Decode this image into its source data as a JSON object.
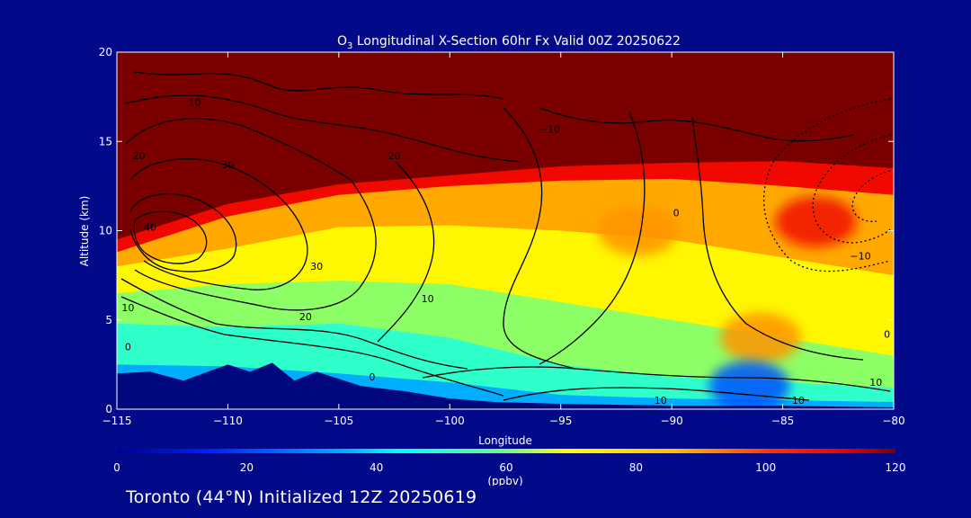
{
  "chart_data": {
    "type": "heatmap",
    "title_prefix": "O",
    "title_subscript": "3",
    "title_rest": " Longitudinal X-Section 60hr  Fx Valid 00Z 20250622",
    "xlabel": "Longitude",
    "ylabel": "Altitude (km)",
    "xlim": [
      -115,
      -80
    ],
    "ylim": [
      0,
      20
    ],
    "x_ticks": [
      -115,
      -110,
      -105,
      -100,
      -95,
      -90,
      -85,
      -80
    ],
    "x_tick_labels": [
      "−115",
      "−110",
      "−105",
      "−100",
      "−95",
      "−90",
      "−85",
      "−80"
    ],
    "y_ticks": [
      0,
      5,
      10,
      15,
      20
    ],
    "y_tick_labels": [
      "0",
      "5",
      "10",
      "15",
      "20"
    ],
    "colorbar": {
      "label": "(ppbv)",
      "ticks": [
        0,
        20,
        40,
        60,
        80,
        100,
        120
      ],
      "tick_labels": [
        "0",
        "20",
        "40",
        "60",
        "80",
        "100",
        "120"
      ],
      "range": [
        0,
        120
      ]
    },
    "field_bands_ppbv": [
      {
        "level": 35,
        "top_altitude_km": [
          [
            -115,
            2.5
          ],
          [
            -110,
            2.4
          ],
          [
            -105,
            2.0
          ],
          [
            -100,
            1.5
          ],
          [
            -95,
            0.8
          ],
          [
            -90,
            0.6
          ],
          [
            -85,
            0.5
          ],
          [
            -80,
            0.4
          ]
        ]
      },
      {
        "level": 50,
        "top_altitude_km": [
          [
            -115,
            4.8
          ],
          [
            -110,
            4.6
          ],
          [
            -105,
            4.8
          ],
          [
            -100,
            4.0
          ],
          [
            -95,
            2.5
          ],
          [
            -90,
            1.8
          ],
          [
            -85,
            1.5
          ],
          [
            -80,
            1.2
          ]
        ]
      },
      {
        "level": 62,
        "top_altitude_km": [
          [
            -115,
            6.5
          ],
          [
            -110,
            7.0
          ],
          [
            -105,
            7.2
          ],
          [
            -100,
            7.0
          ],
          [
            -95,
            6.0
          ],
          [
            -90,
            5.0
          ],
          [
            -85,
            4.0
          ],
          [
            -80,
            3.0
          ]
        ]
      },
      {
        "level": 72,
        "top_altitude_km": [
          [
            -115,
            8.0
          ],
          [
            -110,
            9.0
          ],
          [
            -105,
            10.2
          ],
          [
            -100,
            10.3
          ],
          [
            -95,
            10.0
          ],
          [
            -90,
            9.5
          ],
          [
            -85,
            8.5
          ],
          [
            -80,
            7.5
          ]
        ]
      },
      {
        "level": 88,
        "top_altitude_km": [
          [
            -115,
            8.8
          ],
          [
            -110,
            10.8
          ],
          [
            -105,
            12.0
          ],
          [
            -100,
            12.5
          ],
          [
            -95,
            12.8
          ],
          [
            -90,
            12.9
          ],
          [
            -85,
            12.5
          ],
          [
            -80,
            12.0
          ]
        ]
      },
      {
        "level": 110,
        "top_altitude_km": [
          [
            -115,
            9.5
          ],
          [
            -110,
            11.5
          ],
          [
            -105,
            12.6
          ],
          [
            -100,
            13.1
          ],
          [
            -95,
            13.6
          ],
          [
            -90,
            13.8
          ],
          [
            -85,
            13.9
          ],
          [
            -80,
            13.5
          ]
        ]
      },
      {
        "level": 125,
        "top_altitude_km": [
          [
            -115,
            20
          ],
          [
            -80,
            20
          ]
        ]
      }
    ],
    "hotspots_ppbv": [
      {
        "value": 110,
        "x_lon": -83.5,
        "y_alt_km": 10.5
      },
      {
        "value": 90,
        "x_lon": -91.5,
        "y_alt_km": 10.0
      },
      {
        "value": 90,
        "x_lon": -86.0,
        "y_alt_km": 4.0
      },
      {
        "value": 22,
        "x_lon": -86.5,
        "y_alt_km": 1.3
      }
    ],
    "terrain_top_altitude_km": [
      [
        -115,
        2.0
      ],
      [
        -113.5,
        2.1
      ],
      [
        -112,
        1.6
      ],
      [
        -110,
        2.5
      ],
      [
        -109,
        2.1
      ],
      [
        -108,
        2.6
      ],
      [
        -107,
        1.6
      ],
      [
        -106,
        2.1
      ],
      [
        -104,
        1.3
      ],
      [
        -102,
        1.0
      ],
      [
        -100,
        0.6
      ],
      [
        -98,
        0.4
      ],
      [
        -95,
        0.3
      ],
      [
        -90,
        0.2
      ],
      [
        -85,
        0.2
      ],
      [
        -80,
        0.1
      ]
    ],
    "contour_labels": [
      {
        "text": "10",
        "x_lon": -111.5,
        "y_alt_km": 17.0
      },
      {
        "text": "20",
        "x_lon": -114,
        "y_alt_km": 14.0
      },
      {
        "text": "30",
        "x_lon": -110,
        "y_alt_km": 13.5
      },
      {
        "text": "40",
        "x_lon": -113.5,
        "y_alt_km": 10.0
      },
      {
        "text": "20",
        "x_lon": -102.5,
        "y_alt_km": 14.0
      },
      {
        "text": "30",
        "x_lon": -106,
        "y_alt_km": 7.8
      },
      {
        "text": "20",
        "x_lon": -106.5,
        "y_alt_km": 5.0
      },
      {
        "text": "10",
        "x_lon": -114.5,
        "y_alt_km": 5.5
      },
      {
        "text": "0",
        "x_lon": -114.5,
        "y_alt_km": 3.3
      },
      {
        "text": "10",
        "x_lon": -101,
        "y_alt_km": 6.0
      },
      {
        "text": "0",
        "x_lon": -103.5,
        "y_alt_km": 1.6
      },
      {
        "text": "−10",
        "x_lon": -95.5,
        "y_alt_km": 15.5
      },
      {
        "text": "0",
        "x_lon": -89.8,
        "y_alt_km": 10.8
      },
      {
        "text": "−10",
        "x_lon": -81.5,
        "y_alt_km": 8.4
      },
      {
        "text": "10",
        "x_lon": -80.8,
        "y_alt_km": 1.3
      },
      {
        "text": "10",
        "x_lon": -90.5,
        "y_alt_km": 0.3
      },
      {
        "text": "10",
        "x_lon": -84.3,
        "y_alt_km": 0.3
      },
      {
        "text": "0",
        "x_lon": -80.3,
        "y_alt_km": 4.0
      }
    ]
  },
  "footer": {
    "text": "Toronto (44°N) Initialized 12Z 20250619"
  },
  "colors": {
    "background": "#020a8a",
    "text": "#ffffff",
    "contour": "#000000",
    "terrain": "#01087e"
  }
}
